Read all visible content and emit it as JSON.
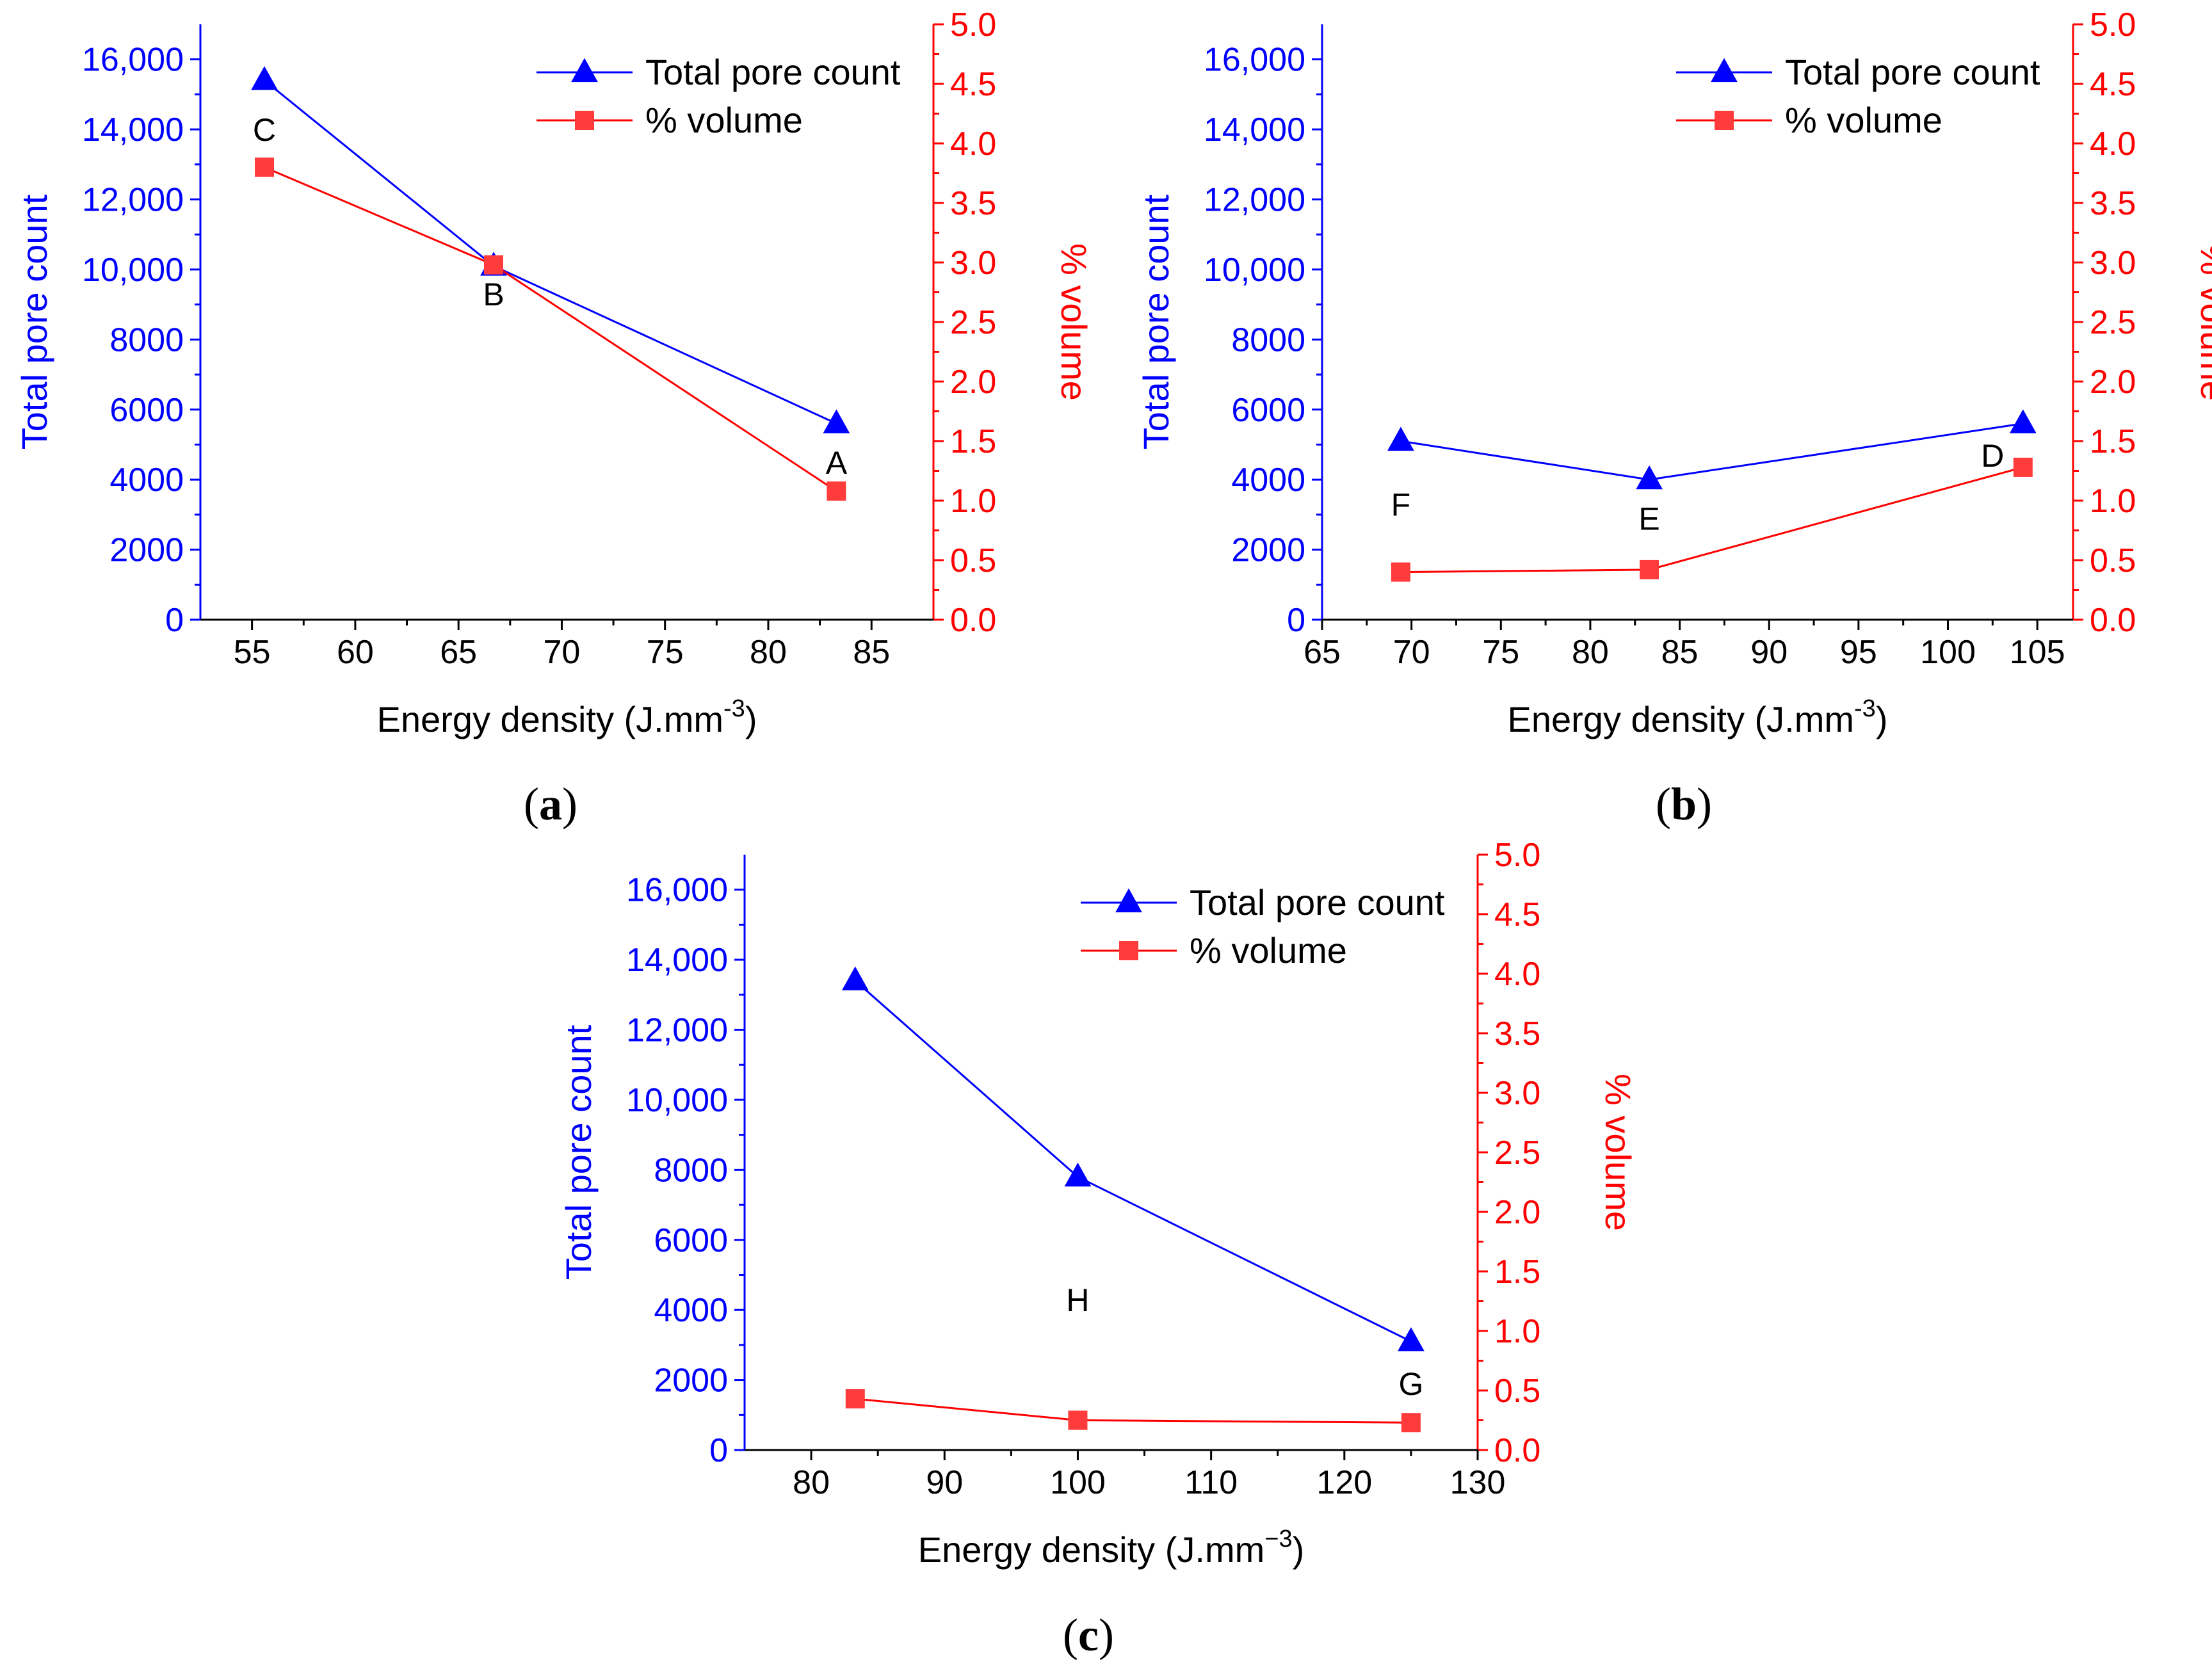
{
  "colors": {
    "left_axis": "#0000ff",
    "right_axis": "#ff0000",
    "count_series": "#0000ff",
    "volume_series": "#ff0000",
    "volume_marker": "#ff3b3b",
    "bottom_axis": "#000000",
    "point_label": "#000000"
  },
  "chart_data": [
    {
      "id": "a",
      "panel_label": "a",
      "type": "line",
      "xlabel": "Energy density (J.mm",
      "xlabel_exp": "-3",
      "ylabel_left": "Total pore count",
      "ylabel_right": "% volume",
      "xlim": [
        52.5,
        88
      ],
      "xticks": [
        55,
        60,
        65,
        70,
        75,
        80,
        85
      ],
      "ylim_left": [
        0,
        17000
      ],
      "yticks_left": [
        0,
        2000,
        4000,
        6000,
        8000,
        10000,
        12000,
        14000,
        16000
      ],
      "ytick_labels_left": [
        "0",
        "2000",
        "4000",
        "6000",
        "8000",
        "10,000",
        "12,000",
        "14,000",
        "16,000"
      ],
      "ylim_right": [
        0,
        5
      ],
      "yticks_right": [
        0,
        0.5,
        1,
        1.5,
        2,
        2.5,
        3,
        3.5,
        4,
        4.5,
        5
      ],
      "ytick_labels_right": [
        "0.0",
        "0.5",
        "1.0",
        "1.5",
        "2.0",
        "2.5",
        "3.0",
        "3.5",
        "4.0",
        "4.5",
        "5.0"
      ],
      "legend_position": "top-right",
      "series": [
        {
          "name": "Total pore count",
          "axis": "left",
          "marker": "triangle",
          "x": [
            55.6,
            66.7,
            83.3
          ],
          "values": [
            15400,
            10100,
            5600
          ]
        },
        {
          "name": "% volume",
          "axis": "right",
          "marker": "square",
          "x": [
            55.6,
            66.7,
            83.3
          ],
          "values": [
            3.8,
            2.98,
            1.08
          ]
        }
      ],
      "annotations": [
        {
          "text": "C",
          "x": 55.6,
          "y": 14000
        },
        {
          "text": "B",
          "x": 66.7,
          "y": 9300
        },
        {
          "text": "A",
          "x": 83.3,
          "y": 4500
        }
      ]
    },
    {
      "id": "b",
      "panel_label": "b",
      "type": "line",
      "xlabel": "Energy density (J.mm",
      "xlabel_exp": "-3",
      "ylabel_left": "Total pore count",
      "ylabel_right": "% volume",
      "xlim": [
        65,
        107
      ],
      "xticks": [
        65,
        70,
        75,
        80,
        85,
        90,
        95,
        100,
        105
      ],
      "ylim_left": [
        0,
        17000
      ],
      "yticks_left": [
        0,
        2000,
        4000,
        6000,
        8000,
        10000,
        12000,
        14000,
        16000
      ],
      "ytick_labels_left": [
        "0",
        "2000",
        "4000",
        "6000",
        "8000",
        "10,000",
        "12,000",
        "14,000",
        "16,000"
      ],
      "ylim_right": [
        0,
        5
      ],
      "yticks_right": [
        0,
        0.5,
        1,
        1.5,
        2,
        2.5,
        3,
        3.5,
        4,
        4.5,
        5
      ],
      "ytick_labels_right": [
        "0.0",
        "0.5",
        "1.0",
        "1.5",
        "2.0",
        "2.5",
        "3.0",
        "3.5",
        "4.0",
        "4.5",
        "5.0"
      ],
      "legend_position": "top-right",
      "series": [
        {
          "name": "Total pore count",
          "axis": "left",
          "marker": "triangle",
          "x": [
            69.4,
            83.3,
            104.2
          ],
          "values": [
            5100,
            4000,
            5600
          ]
        },
        {
          "name": "% volume",
          "axis": "right",
          "marker": "square",
          "x": [
            69.4,
            83.3,
            104.2
          ],
          "values": [
            0.4,
            0.42,
            1.28
          ]
        }
      ],
      "annotations": [
        {
          "text": "F",
          "x": 69.4,
          "y": 3300
        },
        {
          "text": "E",
          "x": 83.3,
          "y": 2900
        },
        {
          "text": "D",
          "x": 102.5,
          "y": 4700
        }
      ]
    },
    {
      "id": "c",
      "panel_label": "c",
      "type": "line",
      "xlabel": "Energy density (J.mm",
      "xlabel_exp": "−3",
      "ylabel_left": "Total pore count",
      "ylabel_right": "% volume",
      "xlim": [
        75,
        130
      ],
      "xticks": [
        80,
        90,
        100,
        110,
        120,
        130
      ],
      "ylim_left": [
        0,
        17000
      ],
      "yticks_left": [
        0,
        2000,
        4000,
        6000,
        8000,
        10000,
        12000,
        14000,
        16000
      ],
      "ytick_labels_left": [
        "0",
        "2000",
        "4000",
        "6000",
        "8000",
        "10,000",
        "12,000",
        "14,000",
        "16,000"
      ],
      "ylim_right": [
        0,
        5
      ],
      "yticks_right": [
        0,
        0.5,
        1,
        1.5,
        2,
        2.5,
        3,
        3.5,
        4,
        4.5,
        5
      ],
      "ytick_labels_right": [
        "0.0",
        "0.5",
        "1.0",
        "1.5",
        "2.0",
        "2.5",
        "3.0",
        "3.5",
        "4.0",
        "4.5",
        "5.0"
      ],
      "legend_position": "top-right",
      "series": [
        {
          "name": "Total pore count",
          "axis": "left",
          "marker": "triangle",
          "x": [
            83.3,
            100,
            125
          ],
          "values": [
            13400,
            7800,
            3100
          ]
        },
        {
          "name": "% volume",
          "axis": "right",
          "marker": "square",
          "x": [
            83.3,
            100,
            125
          ],
          "values": [
            0.43,
            0.25,
            0.23
          ]
        }
      ],
      "annotations": [
        {
          "text": "H",
          "x": 100,
          "y": 4300
        },
        {
          "text": "G",
          "x": 125,
          "y": 1900
        }
      ]
    }
  ]
}
